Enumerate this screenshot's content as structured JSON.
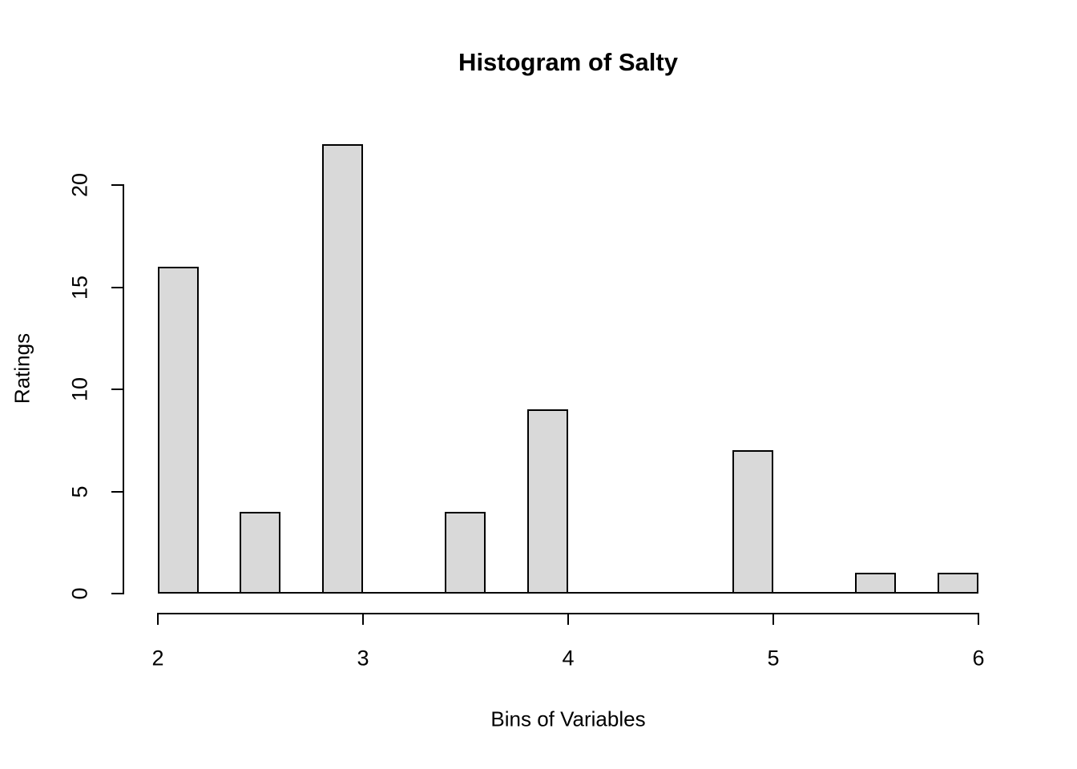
{
  "chart_data": {
    "type": "bar",
    "chart_kind": "histogram",
    "title": "Histogram of Salty",
    "xlabel": "Bins of Variables",
    "ylabel": "Ratings",
    "xlim": [
      2,
      6
    ],
    "ylim": [
      0,
      20
    ],
    "x_ticks": [
      2,
      3,
      4,
      5,
      6
    ],
    "y_ticks": [
      0,
      5,
      10,
      15,
      20
    ],
    "bin_width": 0.2,
    "bin_starts": [
      2.0,
      2.2,
      2.4,
      2.6,
      2.8,
      3.0,
      3.2,
      3.4,
      3.6,
      3.8,
      4.0,
      4.2,
      4.4,
      4.6,
      4.8,
      5.0,
      5.2,
      5.4,
      5.6,
      5.8
    ],
    "counts": [
      16,
      0,
      4,
      0,
      22,
      0,
      0,
      4,
      0,
      9,
      0,
      0,
      0,
      0,
      7,
      0,
      0,
      1,
      0,
      1
    ],
    "bar_fill": "#d9d9d9",
    "bar_border": "#000000",
    "grid": false,
    "legend": false,
    "background": "#ffffff",
    "text_color": "#000000"
  }
}
